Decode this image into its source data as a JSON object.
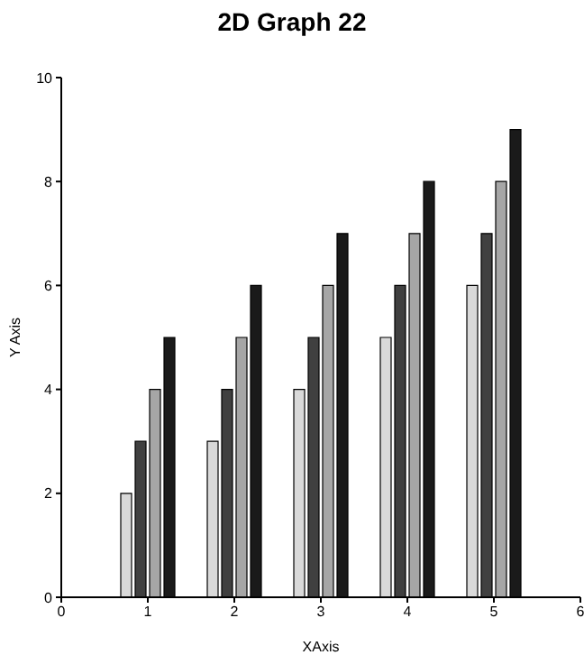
{
  "chart_data": {
    "type": "bar",
    "title": "2D Graph 22",
    "xlabel": "XAxis",
    "ylabel": "Y Axis",
    "x": [
      1,
      2,
      3,
      4,
      5
    ],
    "series": [
      {
        "color": "#d9d9d9",
        "values": [
          2,
          3,
          4,
          5,
          6
        ]
      },
      {
        "color": "#404040",
        "values": [
          3,
          4,
          5,
          6,
          7
        ]
      },
      {
        "color": "#a6a6a6",
        "values": [
          4,
          5,
          6,
          7,
          8
        ]
      },
      {
        "color": "#1a1a1a",
        "values": [
          5,
          6,
          7,
          8,
          9
        ]
      }
    ],
    "xlim": [
      0,
      6
    ],
    "xticks": [
      0,
      1,
      2,
      3,
      4,
      5,
      6
    ],
    "ylim": [
      0,
      10
    ],
    "yticks": [
      0,
      2,
      4,
      6,
      8,
      10
    ],
    "grid": false,
    "legend": false
  }
}
